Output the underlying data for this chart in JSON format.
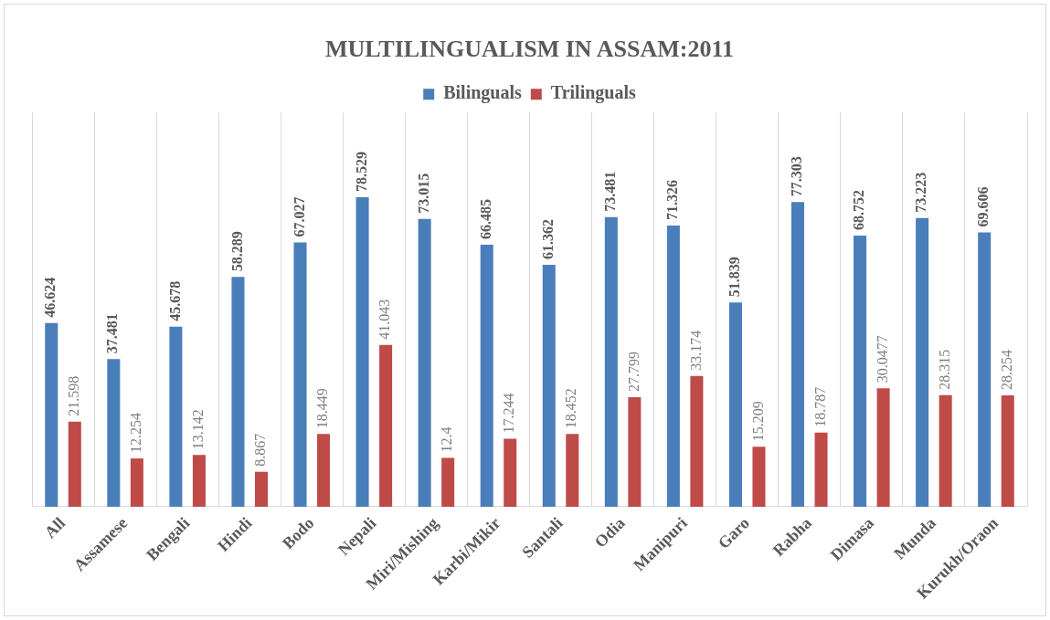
{
  "chart_data": {
    "type": "bar",
    "title": "MULTILINGUALISM IN ASSAM:2011",
    "categories": [
      "All",
      "Assamese",
      "Bengali",
      "Hindi",
      "Bodo",
      "Nepali",
      "Miri/Mishing",
      "Karbi/Mikir",
      "Santali",
      "Odia",
      "Manipuri",
      "Garo",
      "Rabha",
      "Dimasa",
      "Munda",
      "Kurukh/Oraon"
    ],
    "series": [
      {
        "name": "Bilinguals",
        "color": "#4a7ebb",
        "values": [
          46.624,
          37.481,
          45.678,
          58.289,
          67.027,
          78.529,
          73.015,
          66.485,
          61.362,
          73.481,
          71.326,
          51.839,
          77.303,
          68.752,
          73.223,
          69.606
        ]
      },
      {
        "name": "Trilinguals",
        "color": "#be4b48",
        "values": [
          21.598,
          12.254,
          13.142,
          8.867,
          18.449,
          41.043,
          12.4,
          17.244,
          18.452,
          27.799,
          33.174,
          15.209,
          18.787,
          30.0477,
          28.315,
          28.254
        ]
      }
    ],
    "data_labels": true,
    "grid": "x",
    "legend": "top",
    "tick_labels": "x"
  }
}
